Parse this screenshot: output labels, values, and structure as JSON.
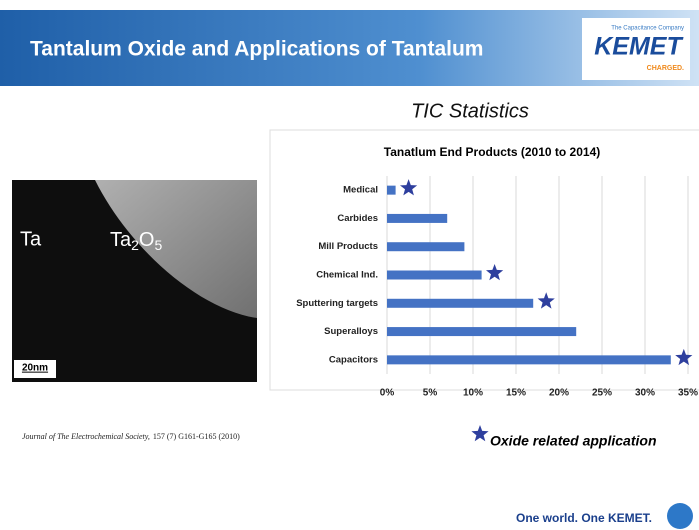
{
  "header": {
    "title": "Tantalum Oxide and Applications of Tantalum",
    "logo_tagline": "The Capacitance Company",
    "logo": "KEMET",
    "logo_slogan": "CHARGED."
  },
  "subtitle": "TIC Statistics",
  "image": {
    "left_label": "Ta",
    "right_label": [
      "Ta",
      "2",
      "O",
      "5"
    ],
    "scale": "20nm"
  },
  "citation": {
    "journal": "Journal of The Electrochemical Society,",
    "details": "157 (7) G161-G165 (2010)"
  },
  "legend": "Oxide related application",
  "footer": "One world. One KEMET.",
  "chart_data": {
    "type": "hbar",
    "title": "Tanatlum End Products (2010 to 2014)",
    "categories": [
      "Medical",
      "Carbides",
      "Mill Products",
      "Chemical Ind.",
      "Sputtering targets",
      "Superalloys",
      "Capacitors"
    ],
    "values": [
      1,
      7,
      9,
      11,
      17,
      22,
      33
    ],
    "oxide_related": [
      true,
      false,
      false,
      true,
      true,
      false,
      true
    ],
    "color": "#4472c4",
    "marker_color": "#2e3f9e",
    "xlim": [
      0,
      35
    ],
    "xticks": [
      {
        "value": 0,
        "label": "0%"
      },
      {
        "value": 5,
        "label": "5%"
      },
      {
        "value": 10,
        "label": "10%"
      },
      {
        "value": 15,
        "label": "15%"
      },
      {
        "value": 20,
        "label": "20%"
      },
      {
        "value": 25,
        "label": "25%"
      },
      {
        "value": 30,
        "label": "30%"
      },
      {
        "value": 35,
        "label": "35%"
      }
    ],
    "grid": true
  }
}
